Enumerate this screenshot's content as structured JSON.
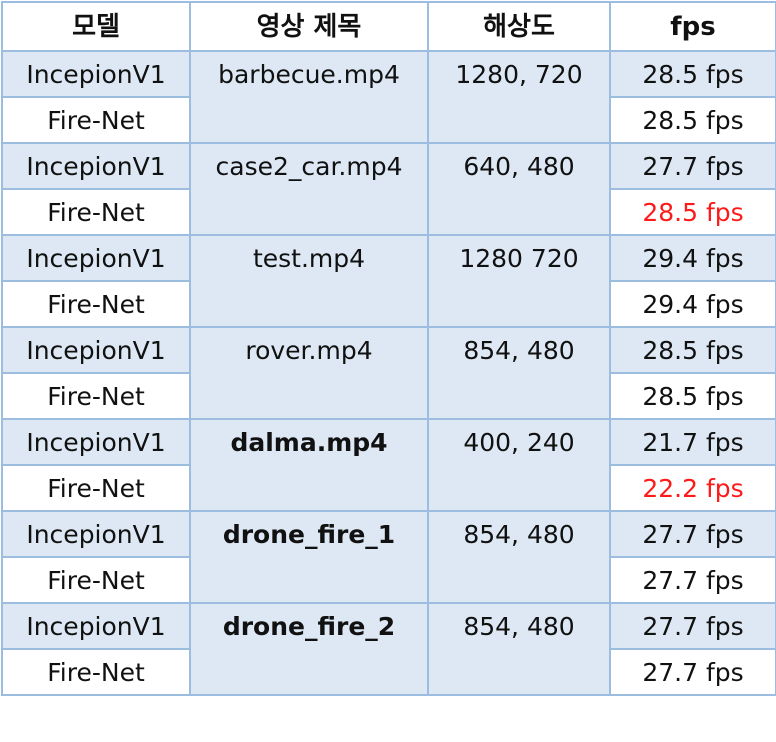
{
  "headers": {
    "model": "모델",
    "video_title": "영상 제목",
    "resolution": "해상도",
    "fps": "fps"
  },
  "rows": [
    {
      "video": "barbecue.mp4",
      "resolution": "1280, 720",
      "video_bold": false,
      "models": [
        {
          "name": "IncepionV1",
          "fps": "28.5 fps",
          "highlight": false
        },
        {
          "name": "Fire-Net",
          "fps": "28.5 fps",
          "highlight": false
        }
      ]
    },
    {
      "video": "case2_car.mp4",
      "resolution": "640, 480",
      "video_bold": false,
      "models": [
        {
          "name": "IncepionV1",
          "fps": "27.7 fps",
          "highlight": false
        },
        {
          "name": "Fire-Net",
          "fps": "28.5 fps",
          "highlight": true
        }
      ]
    },
    {
      "video": "test.mp4",
      "resolution": "1280 720",
      "video_bold": false,
      "models": [
        {
          "name": "IncepionV1",
          "fps": "29.4 fps",
          "highlight": false
        },
        {
          "name": "Fire-Net",
          "fps": "29.4 fps",
          "highlight": false
        }
      ]
    },
    {
      "video": "rover.mp4",
      "resolution": "854, 480",
      "video_bold": false,
      "models": [
        {
          "name": "IncepionV1",
          "fps": "28.5 fps",
          "highlight": false
        },
        {
          "name": "Fire-Net",
          "fps": "28.5 fps",
          "highlight": false
        }
      ]
    },
    {
      "video": "dalma.mp4",
      "resolution": "400, 240",
      "video_bold": true,
      "models": [
        {
          "name": "IncepionV1",
          "fps": "21.7 fps",
          "highlight": false
        },
        {
          "name": "Fire-Net",
          "fps": "22.2 fps",
          "highlight": true
        }
      ]
    },
    {
      "video": "drone_fire_1",
      "resolution": "854, 480",
      "video_bold": true,
      "models": [
        {
          "name": "IncepionV1",
          "fps": "27.7 fps",
          "highlight": false
        },
        {
          "name": "Fire-Net",
          "fps": "27.7 fps",
          "highlight": false
        }
      ]
    },
    {
      "video": "drone_fire_2",
      "resolution": "854, 480",
      "video_bold": true,
      "models": [
        {
          "name": "IncepionV1",
          "fps": "27.7 fps",
          "highlight": false
        },
        {
          "name": "Fire-Net",
          "fps": "27.7 fps",
          "highlight": false
        }
      ]
    }
  ],
  "colors": {
    "border": "#9dbde0",
    "shaded_row": "#dde8f4",
    "highlight_text": "#ff1a1a"
  }
}
